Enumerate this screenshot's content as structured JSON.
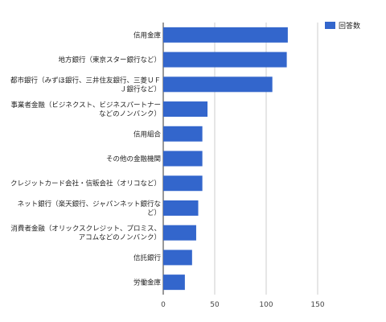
{
  "chart_data": {
    "type": "bar",
    "orientation": "horizontal",
    "categories": [
      [
        "信用金庫"
      ],
      [
        "地方銀行（東京スター銀行など）"
      ],
      [
        "都市銀行（みずほ銀行、三井住友銀行、三菱ＵＦ",
        "Ｊ銀行など）"
      ],
      [
        "事業者金融（ビジネクスト、ビジネスパートナー",
        "などのノンバンク）"
      ],
      [
        "信用組合"
      ],
      [
        "その他の金融機関"
      ],
      [
        "クレジットカード会社・信販会社（オリコなど）"
      ],
      [
        "ネット銀行（楽天銀行、ジャパンネット銀行な",
        "ど）"
      ],
      [
        "消費者金融（オリックスクレジット、プロミス、",
        "アコムなどのノンバンク）"
      ],
      [
        "信託銀行"
      ],
      [
        "労働金庫"
      ]
    ],
    "series": [
      {
        "name": "回答数",
        "color": "#3366cc",
        "values": [
          121,
          120,
          106,
          43,
          38,
          38,
          38,
          34,
          32,
          28,
          21
        ]
      }
    ],
    "xticks": [
      0,
      50,
      100,
      150
    ],
    "xlim": [
      0,
      150
    ],
    "grid": true,
    "legend_position": "top-right",
    "title": "",
    "xlabel": "",
    "ylabel": ""
  }
}
